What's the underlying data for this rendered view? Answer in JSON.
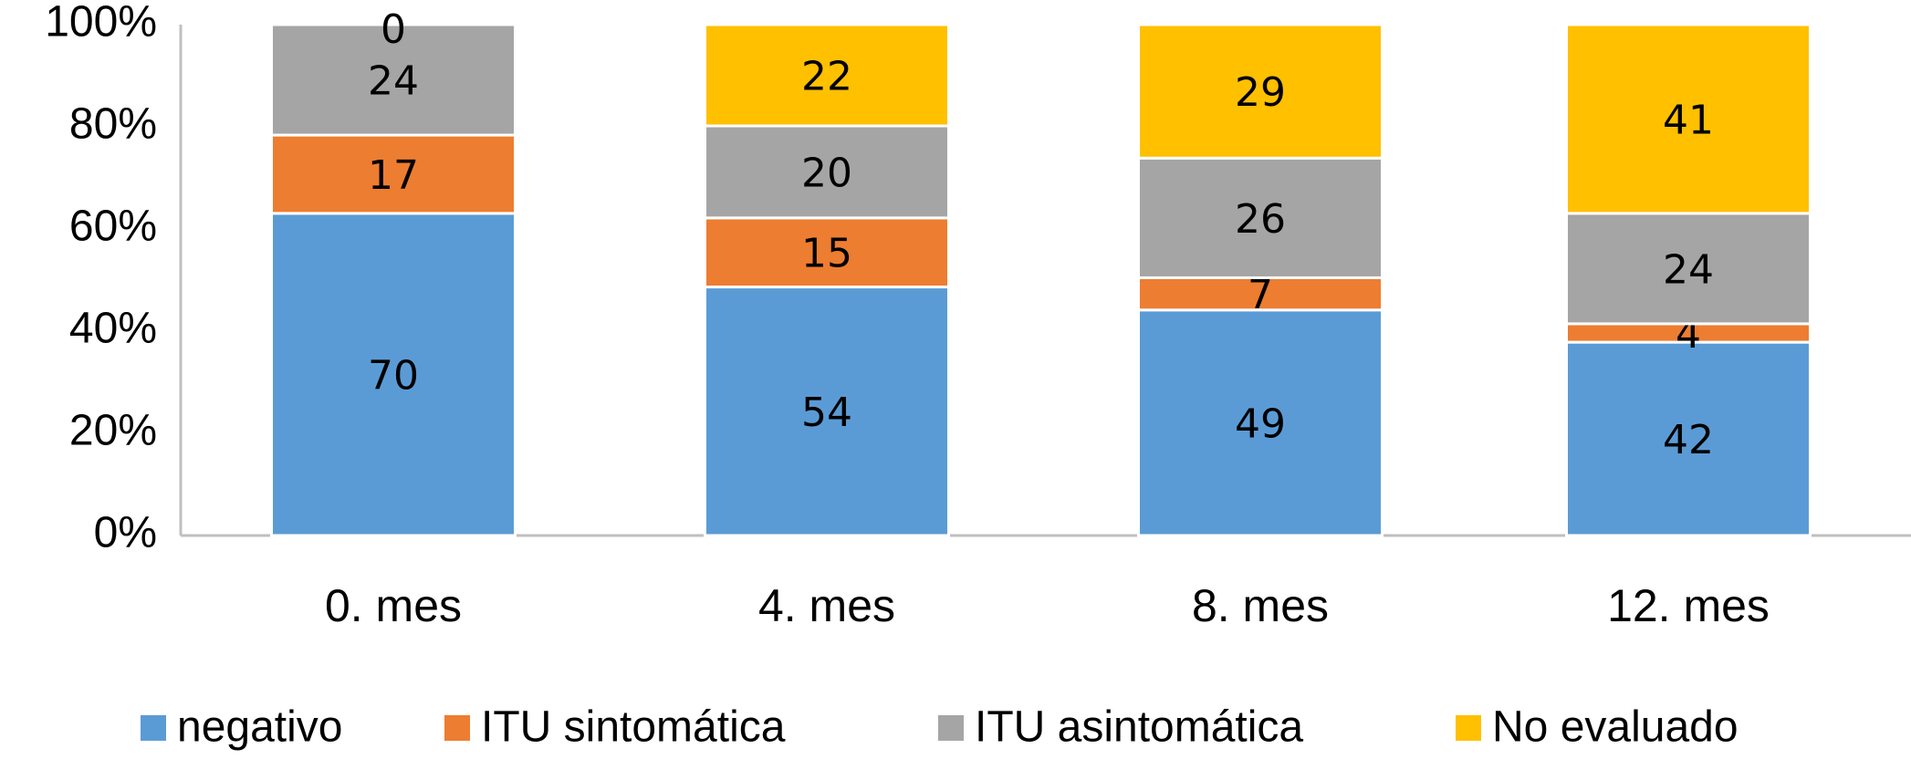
{
  "chart_data": {
    "type": "bar",
    "stacked": "percent",
    "categories": [
      "0. mes",
      "4. mes",
      "8. mes",
      "12. mes"
    ],
    "series": [
      {
        "name": "negativo",
        "color": "#5b9bd5",
        "values": [
          70,
          54,
          49,
          42
        ]
      },
      {
        "name": "ITU sintomática",
        "color": "#ed7d31",
        "values": [
          17,
          15,
          7,
          4
        ]
      },
      {
        "name": "ITU asintomática",
        "color": "#a5a5a5",
        "values": [
          24,
          20,
          26,
          24
        ]
      },
      {
        "name": "No evaluado",
        "color": "#ffc000",
        "values": [
          0,
          22,
          29,
          41
        ]
      }
    ],
    "ylim": [
      0,
      100
    ],
    "yticks": [
      {
        "value": 0,
        "label": "0%"
      },
      {
        "value": 20,
        "label": "20%"
      },
      {
        "value": 40,
        "label": "40%"
      },
      {
        "value": 60,
        "label": "60%"
      },
      {
        "value": 80,
        "label": "80%"
      },
      {
        "value": 100,
        "label": "100%"
      }
    ],
    "legend": "bottom"
  }
}
